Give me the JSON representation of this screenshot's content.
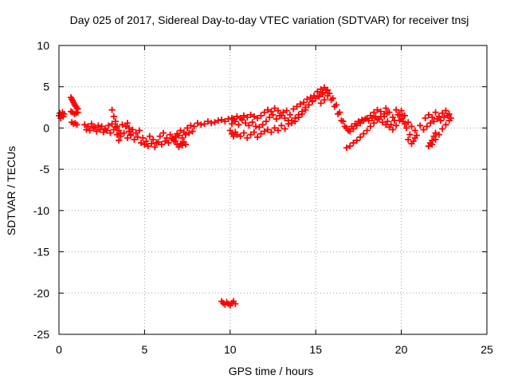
{
  "chart_data": {
    "type": "scatter",
    "title": "Day 025 of 2017, Sidereal Day-to-day VTEC variation (SDTVAR) for receiver tnsj",
    "xlabel": "GPS time / hours",
    "ylabel": "SDTVAR / TECUs",
    "xlim": [
      0,
      25
    ],
    "ylim": [
      -25,
      10
    ],
    "xticks": [
      0,
      5,
      10,
      15,
      20,
      25
    ],
    "yticks": [
      10,
      5,
      0,
      -5,
      -10,
      -15,
      -20,
      -25
    ],
    "grid": true,
    "legend": "none",
    "marker": "+",
    "color": "#ff0000",
    "series": [
      {
        "name": "sdtvar",
        "x": [
          0.0,
          0.05,
          0.1,
          0.15,
          0.2,
          0.25,
          0.3
        ],
        "y": [
          1.5,
          1.8,
          1.2,
          1.6,
          1.9,
          1.4,
          1.7
        ]
      },
      {
        "name": "sdtvar",
        "x": [
          0.7,
          0.75,
          0.8,
          0.85,
          0.9,
          0.95,
          1.0,
          1.05,
          1.1,
          0.7,
          0.8,
          0.9,
          1.0,
          1.1,
          0.75,
          0.85,
          0.95,
          1.05
        ],
        "y": [
          3.7,
          3.5,
          3.3,
          3.1,
          2.9,
          2.7,
          2.6,
          2.4,
          2.3,
          2.0,
          1.9,
          1.7,
          1.8,
          1.9,
          0.7,
          0.5,
          0.6,
          0.4
        ]
      },
      {
        "name": "sdtvar",
        "x": [
          1.5,
          1.7,
          1.9,
          2.1,
          2.3,
          2.5,
          2.7,
          2.9,
          3.1,
          3.3,
          3.5,
          3.7,
          3.9,
          4.1,
          4.3,
          4.5,
          4.7,
          4.9,
          5.1,
          5.3,
          5.5,
          5.7,
          5.9,
          6.1,
          6.3,
          6.5,
          6.7,
          6.9,
          7.1,
          7.3,
          7.5,
          7.7,
          7.9,
          8.1,
          8.3,
          8.5,
          8.7,
          8.9,
          9.1,
          9.3,
          9.5,
          9.7,
          9.9,
          10.1,
          10.2
        ],
        "y": [
          0.4,
          0.2,
          0.5,
          0.1,
          0.3,
          0.2,
          -0.1,
          0.3,
          0.5,
          0.1,
          -0.3,
          0.4,
          0.2,
          -0.4,
          -0.2,
          -0.6,
          -0.3,
          -1.2,
          -1.6,
          -1.0,
          -1.4,
          -1.8,
          -1.0,
          -0.6,
          -1.2,
          -0.8,
          -1.5,
          -0.7,
          -0.3,
          -0.5,
          0.0,
          0.3,
          0.2,
          0.6,
          0.4,
          0.5,
          0.8,
          0.6,
          0.7,
          0.9,
          1.0,
          0.8,
          1.1,
          1.2,
          1.0
        ]
      },
      {
        "name": "sdtvar",
        "x": [
          1.6,
          1.8,
          2.0,
          2.2,
          2.4,
          2.6,
          2.8,
          3.0,
          3.2,
          3.4,
          3.6,
          3.8,
          4.0,
          4.2,
          4.4,
          4.6,
          4.8,
          5.0,
          5.2,
          5.4,
          5.6,
          5.8,
          6.0,
          6.2,
          6.4,
          6.6,
          6.8,
          7.0,
          7.2,
          7.4,
          7.6,
          7.8
        ],
        "y": [
          -0.2,
          -0.3,
          0.0,
          -0.4,
          -0.2,
          -0.5,
          -0.3,
          -0.6,
          -0.2,
          -0.8,
          -1.0,
          -0.6,
          -1.2,
          -0.9,
          -1.4,
          -1.1,
          -1.8,
          -2.0,
          -2.2,
          -1.9,
          -2.3,
          -1.7,
          -2.0,
          -1.6,
          -1.8,
          -1.3,
          -1.1,
          -0.9,
          -1.2,
          -0.8,
          -0.6,
          -0.4
        ]
      },
      {
        "name": "sdtvar",
        "x": [
          3.1,
          3.2,
          3.3,
          3.4,
          4.0,
          4.1,
          4.2,
          3.5,
          3.6
        ],
        "y": [
          2.2,
          1.4,
          0.8,
          0.2,
          0.6,
          0.0,
          -0.8,
          -1.5,
          -0.7
        ]
      },
      {
        "name": "sdtvar",
        "x": [
          6.7,
          6.8,
          6.9,
          7.0,
          7.1,
          7.2,
          7.3,
          7.4
        ],
        "y": [
          -1.3,
          -1.6,
          -2.0,
          -2.3,
          -1.9,
          -2.1,
          -1.7,
          -2.0
        ]
      },
      {
        "name": "sdtvar",
        "x": [
          9.5,
          9.6,
          9.7,
          9.8,
          9.9,
          10.0,
          10.1,
          10.2,
          10.3
        ],
        "y": [
          -21.0,
          -21.2,
          -21.4,
          -21.1,
          -21.3,
          -21.5,
          -21.2,
          -21.0,
          -21.3
        ]
      },
      {
        "name": "sdtvar",
        "x": [
          10.1,
          10.3,
          10.5,
          10.7,
          10.9,
          11.1,
          11.3,
          11.5,
          11.7,
          11.9,
          12.1,
          12.3,
          12.5,
          12.7,
          12.9,
          13.1,
          13.3,
          13.5,
          13.7,
          13.9,
          14.1,
          14.3,
          14.5,
          14.7,
          14.9,
          15.1,
          15.3,
          15.5,
          15.7
        ],
        "y": [
          0.5,
          0.8,
          0.4,
          1.0,
          0.6,
          0.3,
          0.7,
          0.2,
          0.1,
          0.4,
          0.8,
          1.3,
          1.6,
          1.1,
          1.5,
          1.9,
          2.1,
          1.6,
          2.3,
          2.6,
          2.9,
          3.1,
          3.5,
          3.7,
          3.9,
          4.4,
          4.7,
          4.9,
          4.6
        ]
      },
      {
        "name": "sdtvar",
        "x": [
          10.6,
          10.8,
          11.0,
          11.2,
          11.4,
          11.6,
          11.8,
          12.0,
          12.2,
          12.4,
          12.6,
          12.8,
          13.0,
          13.2,
          13.4,
          13.6,
          13.8,
          14.0,
          14.2,
          14.4,
          14.6,
          14.8,
          15.0,
          15.2,
          15.4
        ],
        "y": [
          -1.0,
          -0.6,
          -1.2,
          -0.8,
          -0.5,
          -1.1,
          -0.7,
          -0.4,
          -0.2,
          -0.5,
          0.0,
          -0.3,
          0.3,
          -0.1,
          0.5,
          0.9,
          1.2,
          1.6,
          2.0,
          2.5,
          2.8,
          3.3,
          3.6,
          3.9,
          4.1
        ]
      },
      {
        "name": "sdtvar",
        "x": [
          10.2,
          10.4,
          10.6,
          10.8,
          11.0,
          11.2,
          11.4,
          11.6,
          11.8,
          12.0,
          12.2,
          12.4,
          12.6,
          12.8,
          13.0,
          13.2,
          13.4,
          13.6,
          13.8,
          14.0,
          14.2,
          14.4,
          14.6,
          14.8
        ],
        "y": [
          1.1,
          1.4,
          1.2,
          1.5,
          1.3,
          1.6,
          1.4,
          1.2,
          1.5,
          1.9,
          2.2,
          2.0,
          2.4,
          2.1,
          1.5,
          1.2,
          0.9,
          0.6,
          0.8,
          1.3,
          1.7,
          2.2,
          2.8,
          3.2
        ]
      },
      {
        "name": "sdtvar",
        "x": [
          10.0,
          10.1,
          10.2,
          10.3,
          10.4
        ],
        "y": [
          -0.3,
          -0.7,
          -1.0,
          -0.5,
          -0.8
        ]
      },
      {
        "name": "sdtvar",
        "x": [
          15.2,
          15.4,
          15.6,
          15.8,
          16.0,
          16.2,
          16.4,
          16.6,
          16.8,
          17.0,
          17.2,
          17.4,
          17.6,
          17.8,
          18.0,
          18.2,
          18.4,
          18.6,
          18.8,
          19.0,
          19.2,
          19.4,
          19.6,
          19.8,
          20.0,
          20.2,
          20.4,
          20.6,
          20.8
        ],
        "y": [
          3.8,
          4.3,
          4.6,
          4.2,
          3.6,
          2.8,
          1.9,
          0.8,
          0.0,
          -0.4,
          -0.1,
          0.3,
          0.6,
          0.9,
          1.2,
          1.5,
          1.9,
          2.2,
          2.0,
          1.4,
          0.8,
          0.4,
          0.9,
          1.6,
          2.1,
          1.5,
          0.7,
          0.2,
          -0.3
        ]
      },
      {
        "name": "sdtvar",
        "x": [
          15.3,
          15.5,
          15.7,
          15.9,
          16.1,
          16.3,
          16.5,
          16.7,
          16.9,
          17.1,
          17.3,
          17.5,
          17.7,
          17.9,
          18.1,
          18.3,
          18.5,
          18.7,
          18.9,
          19.1,
          19.3,
          19.5,
          19.7,
          19.9,
          20.1
        ],
        "y": [
          3.0,
          3.4,
          3.9,
          3.4,
          2.6,
          1.7,
          0.9,
          0.2,
          -0.3,
          0.2,
          0.5,
          0.8,
          1.0,
          1.1,
          0.9,
          1.2,
          1.4,
          1.1,
          0.7,
          0.4,
          0.1,
          -0.2,
          0.3,
          0.9,
          1.5
        ]
      },
      {
        "name": "sdtvar",
        "x": [
          16.8,
          17.0,
          17.2,
          17.4,
          17.6,
          17.8,
          18.0,
          18.2,
          18.4,
          18.6,
          18.8,
          19.0,
          19.2
        ],
        "y": [
          -2.4,
          -2.2,
          -1.8,
          -1.5,
          -1.1,
          -0.7,
          -0.3,
          0.2,
          0.6,
          1.0,
          1.4,
          1.7,
          1.9
        ]
      },
      {
        "name": "sdtvar",
        "x": [
          19.1,
          19.3,
          19.5,
          19.7,
          19.9,
          20.1,
          20.3,
          20.5,
          20.7,
          20.9,
          21.1,
          21.3,
          20.4,
          20.6,
          20.8,
          20.2,
          20.0
        ],
        "y": [
          2.4,
          1.9,
          1.3,
          2.2,
          1.6,
          0.8,
          0.0,
          -0.8,
          -1.6,
          -0.9,
          0.3,
          -0.2,
          -1.4,
          -1.9,
          -1.2,
          0.5,
          1.1
        ]
      },
      {
        "name": "sdtvar",
        "x": [
          21.4,
          21.6,
          21.8,
          22.0,
          22.2,
          22.4,
          22.6,
          22.8,
          21.5,
          21.7,
          21.9,
          22.1,
          22.3,
          22.5,
          22.7,
          22.9,
          21.8,
          22.0,
          22.2,
          22.4,
          22.6,
          22.8
        ],
        "y": [
          1.2,
          1.6,
          1.3,
          1.9,
          1.4,
          1.8,
          2.1,
          1.7,
          0.2,
          0.6,
          0.8,
          1.1,
          0.9,
          1.3,
          1.5,
          1.2,
          -2.0,
          -1.4,
          -0.8,
          -0.1,
          0.4,
          0.9
        ]
      },
      {
        "name": "sdtvar",
        "x": [
          21.6,
          21.7,
          21.8,
          21.9,
          22.0
        ],
        "y": [
          -2.2,
          -1.8,
          -1.5,
          -1.0,
          -0.6
        ]
      }
    ]
  }
}
